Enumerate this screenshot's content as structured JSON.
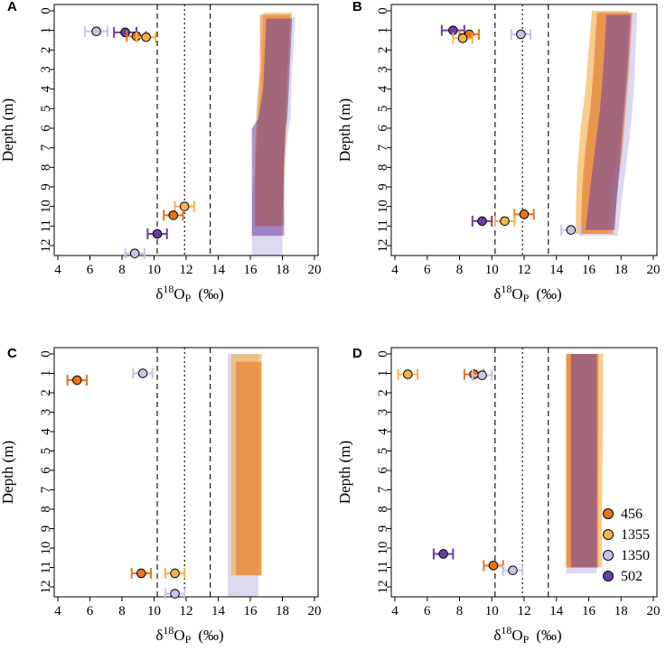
{
  "figure": {
    "colors": {
      "456": "#e8731e",
      "1355": "#f5b14e",
      "1350": "#c8c3e8",
      "502": "#6a3fa0"
    },
    "reference_lines": [
      {
        "x": 10.2,
        "style": "dashed"
      },
      {
        "x": 11.9,
        "style": "dotted"
      },
      {
        "x": 13.5,
        "style": "dashed"
      }
    ],
    "legend": {
      "panel": "D",
      "entries": [
        {
          "label": "456",
          "series": "456"
        },
        {
          "label": "1355",
          "series": "1355"
        },
        {
          "label": "1350",
          "series": "1350"
        },
        {
          "label": "502",
          "series": "502"
        }
      ]
    }
  },
  "chart_data": [
    {
      "panel": "A",
      "type": "scatter",
      "xlabel_main": "δ",
      "xlabel_sup": "18",
      "xlabel_rest": "O",
      "xlabel_sub": "P",
      "xlabel_unit": "(‰)",
      "ylabel": "Depth (m)",
      "xlim": [
        4,
        20
      ],
      "ylim": [
        0,
        12
      ],
      "x_ticks": [
        4,
        6,
        8,
        10,
        12,
        14,
        16,
        18,
        20
      ],
      "y_ticks": [
        0,
        1,
        2,
        3,
        4,
        5,
        6,
        7,
        8,
        9,
        10,
        11,
        12
      ],
      "points": [
        {
          "series": "1350",
          "x": 6.4,
          "y": 1.05,
          "err": 0.7
        },
        {
          "series": "502",
          "x": 8.2,
          "y": 1.1,
          "err": 0.7
        },
        {
          "series": "456",
          "x": 8.9,
          "y": 1.3,
          "err": 0.6
        },
        {
          "series": "1355",
          "x": 9.5,
          "y": 1.35,
          "err": 0.6
        },
        {
          "series": "1355",
          "x": 11.9,
          "y": 10.0,
          "err": 0.6
        },
        {
          "series": "456",
          "x": 11.2,
          "y": 10.45,
          "err": 0.6
        },
        {
          "series": "502",
          "x": 10.2,
          "y": 11.4,
          "err": 0.6
        },
        {
          "series": "1350",
          "x": 8.8,
          "y": 12.4,
          "err": 0.6
        }
      ],
      "bands": [
        {
          "series": "1350",
          "depth_top": 0.3,
          "depth_bottom": 12.5,
          "outline": [
            [
              0.3,
              17.0,
              18.8
            ],
            [
              3.0,
              16.9,
              18.6
            ],
            [
              5.5,
              16.6,
              18.5
            ],
            [
              6.5,
              16.5,
              18.3
            ],
            [
              8.0,
              16.3,
              18.1
            ],
            [
              9.5,
              16.1,
              18.0
            ],
            [
              11.5,
              16.1,
              18.0
            ],
            [
              12.5,
              16.1,
              18.0
            ]
          ]
        },
        {
          "series": "1355",
          "depth_top": 0.1,
          "depth_bottom": 11.0,
          "outline": [
            [
              0.1,
              16.8,
              18.6
            ],
            [
              3.0,
              16.7,
              18.4
            ],
            [
              5.5,
              16.5,
              18.3
            ],
            [
              7.0,
              16.4,
              18.2
            ],
            [
              9.0,
              16.3,
              18.1
            ],
            [
              11.0,
              16.3,
              18.1
            ]
          ]
        },
        {
          "series": "456",
          "depth_top": 0.2,
          "depth_bottom": 11.0,
          "outline": [
            [
              0.2,
              16.6,
              18.5
            ],
            [
              3.0,
              16.6,
              18.3
            ],
            [
              5.0,
              16.4,
              18.2
            ],
            [
              7.5,
              16.3,
              18.1
            ],
            [
              11.0,
              16.3,
              18.0
            ]
          ]
        },
        {
          "series": "502",
          "depth_top": 0.4,
          "depth_bottom": 11.5,
          "outline": [
            [
              0.4,
              17.0,
              18.6
            ],
            [
              4.0,
              16.8,
              18.4
            ],
            [
              5.5,
              16.5,
              18.3
            ],
            [
              6.0,
              16.1,
              18.2
            ],
            [
              8.0,
              16.1,
              18.1
            ],
            [
              11.5,
              16.1,
              18.1
            ]
          ]
        }
      ]
    },
    {
      "panel": "B",
      "type": "scatter",
      "xlabel_main": "δ",
      "xlabel_sup": "18",
      "xlabel_rest": "O",
      "xlabel_sub": "P",
      "xlabel_unit": "(‰)",
      "ylabel": "Depth (m)",
      "xlim": [
        4,
        20
      ],
      "ylim": [
        0,
        12
      ],
      "x_ticks": [
        4,
        6,
        8,
        10,
        12,
        14,
        16,
        18,
        20
      ],
      "y_ticks": [
        0,
        1,
        2,
        3,
        4,
        5,
        6,
        7,
        8,
        9,
        10,
        11,
        12
      ],
      "points": [
        {
          "series": "502",
          "x": 7.6,
          "y": 1.0,
          "err": 0.7
        },
        {
          "series": "456",
          "x": 8.6,
          "y": 1.2,
          "err": 0.6
        },
        {
          "series": "1355",
          "x": 8.2,
          "y": 1.4,
          "err": 0.6
        },
        {
          "series": "1350",
          "x": 11.8,
          "y": 1.2,
          "err": 0.6
        },
        {
          "series": "456",
          "x": 12.0,
          "y": 10.4,
          "err": 0.6
        },
        {
          "series": "1355",
          "x": 10.8,
          "y": 10.75,
          "err": 0.6
        },
        {
          "series": "502",
          "x": 9.4,
          "y": 10.75,
          "err": 0.6
        },
        {
          "series": "1350",
          "x": 14.9,
          "y": 11.2,
          "err": 0.6
        }
      ],
      "bands": [
        {
          "series": "1350",
          "depth_top": 0.1,
          "depth_bottom": 11.5,
          "outline": [
            [
              0.1,
              16.6,
              19.0
            ],
            [
              2.0,
              16.4,
              18.9
            ],
            [
              4.0,
              16.2,
              18.8
            ],
            [
              6.0,
              16.0,
              18.6
            ],
            [
              8.0,
              15.8,
              18.3
            ],
            [
              10.0,
              15.6,
              18.0
            ],
            [
              11.5,
              15.5,
              17.8
            ]
          ]
        },
        {
          "series": "1355",
          "depth_top": 0.0,
          "depth_bottom": 11.4,
          "outline": [
            [
              0.0,
              16.2,
              18.5
            ],
            [
              2.0,
              16.0,
              18.3
            ],
            [
              4.0,
              15.8,
              18.2
            ],
            [
              6.0,
              15.5,
              18.0
            ],
            [
              8.0,
              15.3,
              17.6
            ],
            [
              10.0,
              15.2,
              17.3
            ],
            [
              11.4,
              15.2,
              17.2
            ]
          ]
        },
        {
          "series": "456",
          "depth_top": 0.1,
          "depth_bottom": 11.4,
          "outline": [
            [
              0.1,
              16.5,
              18.7
            ],
            [
              3.0,
              16.3,
              18.5
            ],
            [
              5.0,
              16.1,
              18.3
            ],
            [
              7.0,
              15.8,
              18.1
            ],
            [
              9.0,
              15.6,
              17.8
            ],
            [
              11.4,
              15.5,
              17.5
            ]
          ]
        },
        {
          "series": "502",
          "depth_top": 0.2,
          "depth_bottom": 11.2,
          "outline": [
            [
              0.2,
              17.1,
              18.6
            ],
            [
              3.0,
              16.9,
              18.4
            ],
            [
              5.0,
              16.7,
              18.2
            ],
            [
              7.0,
              16.4,
              18.0
            ],
            [
              9.0,
              16.1,
              17.8
            ],
            [
              11.2,
              15.8,
              17.6
            ]
          ]
        }
      ]
    },
    {
      "panel": "C",
      "type": "scatter",
      "xlabel_main": "δ",
      "xlabel_sup": "18",
      "xlabel_rest": "O",
      "xlabel_sub": "P",
      "xlabel_unit": "(‰)",
      "ylabel": "Depth (m)",
      "xlim": [
        4,
        20
      ],
      "ylim": [
        0,
        12
      ],
      "x_ticks": [
        4,
        6,
        8,
        10,
        12,
        14,
        16,
        18,
        20
      ],
      "y_ticks": [
        0,
        1,
        2,
        3,
        4,
        5,
        6,
        7,
        8,
        9,
        10,
        11,
        12
      ],
      "points": [
        {
          "series": "456",
          "x": 5.2,
          "y": 1.35,
          "err": 0.6
        },
        {
          "series": "1350",
          "x": 9.3,
          "y": 1.0,
          "err": 0.6
        },
        {
          "series": "456",
          "x": 9.2,
          "y": 11.3,
          "err": 0.6
        },
        {
          "series": "1355",
          "x": 11.3,
          "y": 11.3,
          "err": 0.6
        },
        {
          "series": "1350",
          "x": 11.3,
          "y": 12.35,
          "err": 0.6
        }
      ],
      "bands": [
        {
          "series": "1350",
          "depth_top": 0.0,
          "depth_bottom": 12.5,
          "outline": [
            [
              0.0,
              14.6,
              16.5
            ],
            [
              12.5,
              14.6,
              16.5
            ]
          ]
        },
        {
          "series": "1355",
          "depth_top": 0.0,
          "depth_bottom": 11.4,
          "outline": [
            [
              0.0,
              14.8,
              16.7
            ],
            [
              11.4,
              14.8,
              16.7
            ]
          ]
        },
        {
          "series": "456",
          "depth_top": 0.4,
          "depth_bottom": 11.4,
          "outline": [
            [
              0.4,
              15.1,
              16.7
            ],
            [
              11.4,
              15.1,
              16.7
            ]
          ]
        }
      ]
    },
    {
      "panel": "D",
      "type": "scatter",
      "xlabel_main": "δ",
      "xlabel_sup": "18",
      "xlabel_rest": "O",
      "xlabel_sub": "P",
      "xlabel_unit": "(‰)",
      "ylabel": "Depth (m)",
      "xlim": [
        4,
        20
      ],
      "ylim": [
        0,
        12
      ],
      "x_ticks": [
        4,
        6,
        8,
        10,
        12,
        14,
        16,
        18,
        20
      ],
      "y_ticks": [
        0,
        1,
        2,
        3,
        4,
        5,
        6,
        7,
        8,
        9,
        10,
        11,
        12
      ],
      "points": [
        {
          "series": "1355",
          "x": 4.8,
          "y": 1.05,
          "err": 0.6
        },
        {
          "series": "456",
          "x": 8.9,
          "y": 1.05,
          "err": 0.6
        },
        {
          "series": "1350",
          "x": 9.4,
          "y": 1.1,
          "err": 0.6
        },
        {
          "series": "502",
          "x": 7.0,
          "y": 10.3,
          "err": 0.6
        },
        {
          "series": "456",
          "x": 10.1,
          "y": 10.9,
          "err": 0.6
        },
        {
          "series": "1350",
          "x": 11.3,
          "y": 11.15,
          "err": 0.6
        }
      ],
      "bands": [
        {
          "series": "1355",
          "depth_top": 0.0,
          "depth_bottom": 11.0,
          "outline": [
            [
              0.0,
              14.6,
              16.9
            ],
            [
              11.0,
              14.6,
              16.8
            ]
          ]
        },
        {
          "series": "1350",
          "depth_top": 0.0,
          "depth_bottom": 11.3,
          "outline": [
            [
              0.0,
              14.6,
              16.6
            ],
            [
              11.3,
              14.6,
              16.5
            ]
          ]
        },
        {
          "series": "456",
          "depth_top": 0.0,
          "depth_bottom": 11.0,
          "outline": [
            [
              0.0,
              14.6,
              16.6
            ],
            [
              11.0,
              14.6,
              16.6
            ]
          ]
        },
        {
          "series": "502",
          "depth_top": 0.0,
          "depth_bottom": 11.0,
          "outline": [
            [
              0.0,
              14.9,
              16.5
            ],
            [
              11.0,
              14.9,
              16.5
            ]
          ]
        }
      ]
    }
  ]
}
